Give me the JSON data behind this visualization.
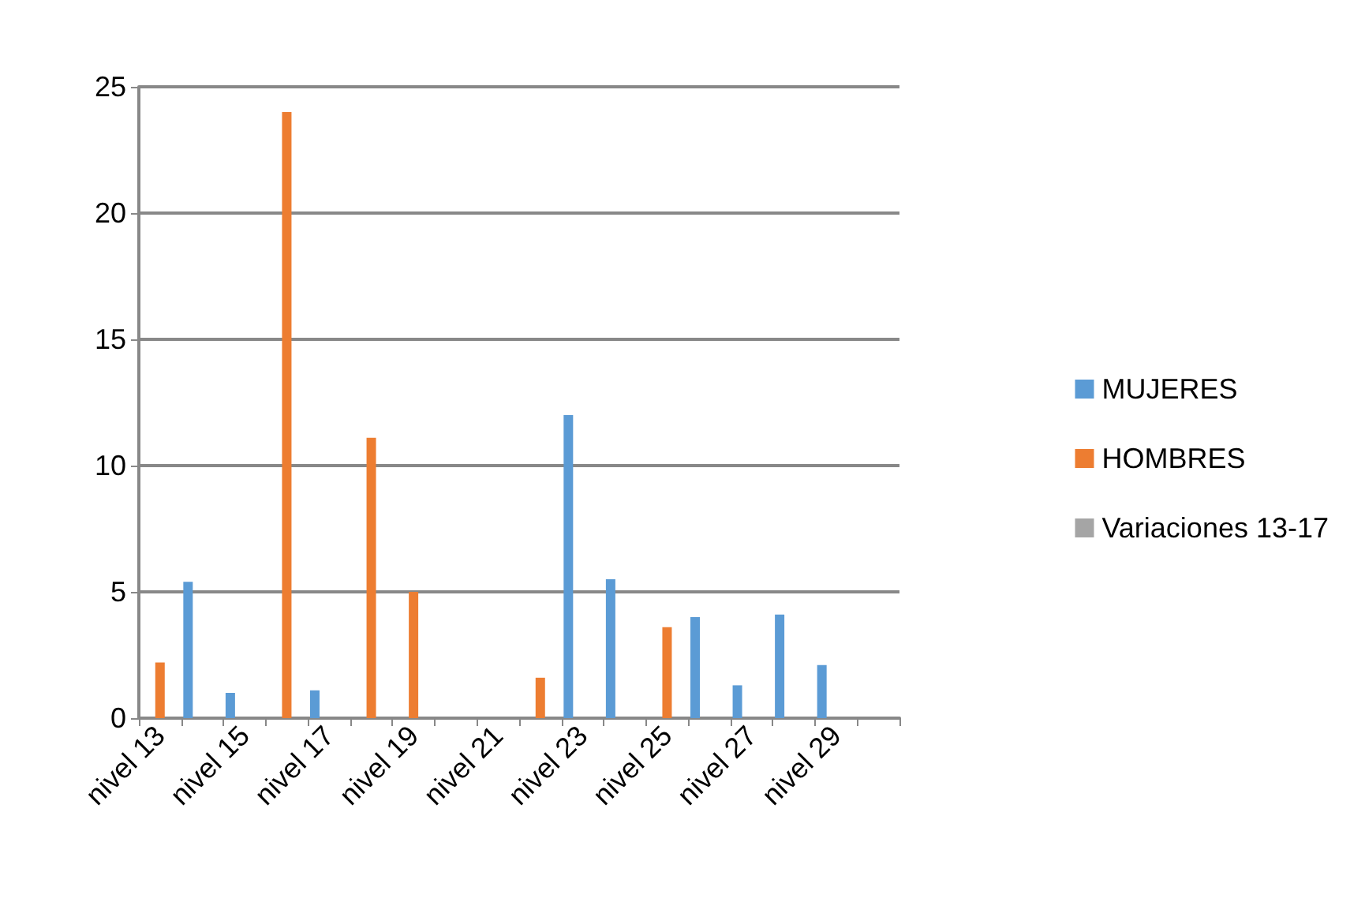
{
  "chart_data": {
    "type": "bar",
    "categories": [
      "nivel 13",
      null,
      "nivel 15",
      null,
      "nivel 17",
      null,
      "nivel 19",
      null,
      "nivel 21",
      null,
      "nivel 23",
      null,
      "nivel 25",
      null,
      "nivel 27",
      null,
      "nivel 29",
      null
    ],
    "series": [
      {
        "name": "MUJERES",
        "color": "#5b9bd5",
        "values": [
          null,
          5.4,
          1.0,
          null,
          1.1,
          null,
          null,
          null,
          null,
          null,
          12.0,
          5.5,
          null,
          4.0,
          1.3,
          4.1,
          2.1,
          null
        ]
      },
      {
        "name": "HOMBRES",
        "color": "#ed7d31",
        "values": [
          2.2,
          null,
          null,
          24,
          null,
          11.1,
          5.0,
          null,
          null,
          1.6,
          null,
          null,
          3.6,
          null,
          null,
          null,
          null,
          null
        ]
      },
      {
        "name": "Variaciones 13-17",
        "color": "#a5a5a5",
        "values": [
          null,
          null,
          null,
          null,
          null,
          null,
          null,
          null,
          0,
          null,
          null,
          null,
          null,
          null,
          null,
          null,
          null,
          0
        ]
      }
    ],
    "ylim": [
      0,
      25
    ],
    "yticks": [
      0,
      5,
      10,
      15,
      20,
      25
    ],
    "grid": "y",
    "legend": "right"
  }
}
